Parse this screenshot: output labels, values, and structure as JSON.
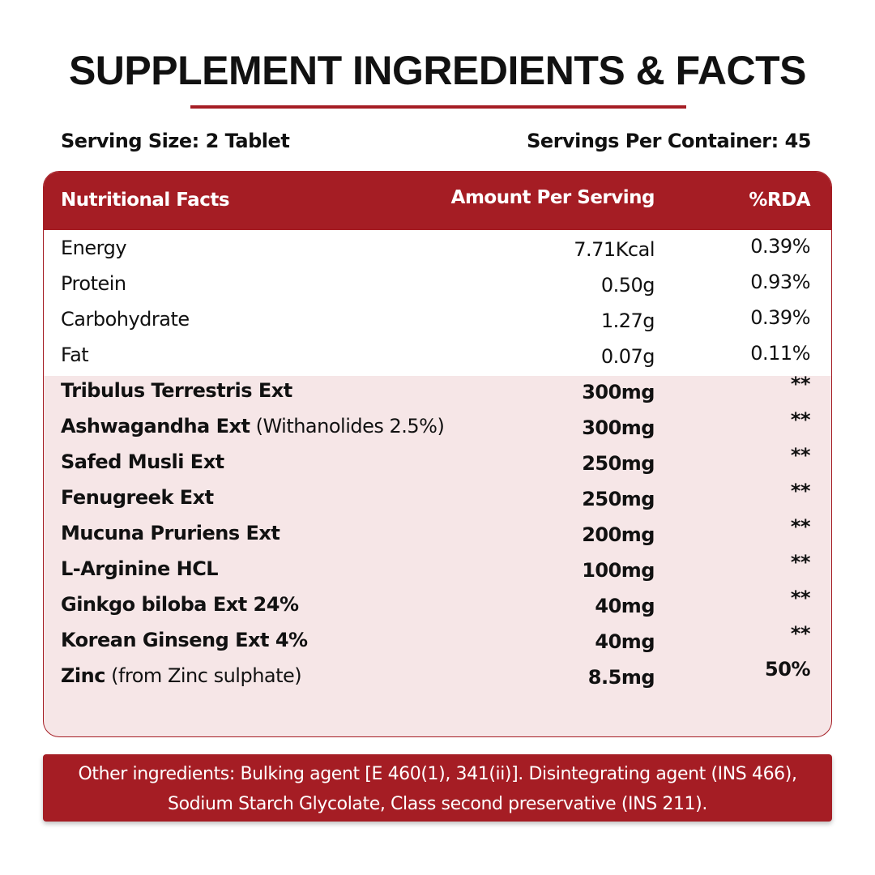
{
  "header": {
    "title": "SUPPLEMENT INGREDIENTS & FACTS",
    "serving_size": "Serving Size: 2 Tablet",
    "servings_per_container": "Servings Per Container: 45"
  },
  "table": {
    "columns": [
      "Nutritional Facts",
      "Amount Per Serving",
      "%RDA"
    ],
    "basic_rows": [
      [
        "Energy",
        "7.71Kcal",
        "0.39%"
      ],
      [
        "Protein",
        "0.50g",
        "0.93%"
      ],
      [
        "Carbohydrate",
        "1.27g",
        "0.39%"
      ],
      [
        "Fat",
        "0.07g",
        "0.11%"
      ]
    ],
    "ingredient_rows": [
      {
        "name": "Tribulus Terrestris Ext",
        "amount": "300mg",
        "rda": "**"
      },
      {
        "name": "Ashwagandha Ext",
        "note": "(Withanolides 2.5%)",
        "amount": "300mg",
        "rda": "**"
      },
      {
        "name": "Safed Musli Ext",
        "amount": "250mg",
        "rda": "**"
      },
      {
        "name": "Fenugreek Ext",
        "amount": "250mg",
        "rda": "**"
      },
      {
        "name": "Mucuna Pruriens Ext",
        "amount": "200mg",
        "rda": "**"
      },
      {
        "name": "L-Arginine HCL",
        "amount": "100mg",
        "rda": "**"
      },
      {
        "name": "Ginkgo biloba Ext 24%",
        "amount": "40mg",
        "rda": "**"
      },
      {
        "name": "Korean Ginseng Ext 4%",
        "amount": "40mg",
        "rda": "**"
      },
      {
        "name": "Zinc",
        "note": "(from Zinc sulphate)",
        "amount": "8.5mg",
        "rda": "50%"
      }
    ]
  },
  "footer": {
    "lines": [
      "Other ingredients: Bulking agent [E 460(1), 341(ii)]. Disintegrating agent (INS 466),",
      "Sodium Starch Glycolate, Class second preservative (INS 211)."
    ]
  }
}
